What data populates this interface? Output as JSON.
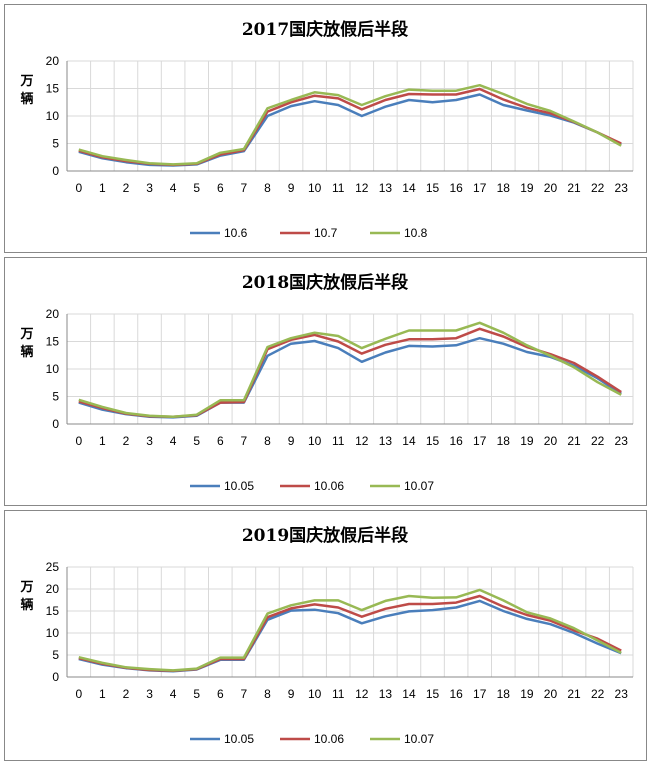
{
  "chart_data": [
    {
      "type": "line",
      "title": "2017国庆放假后半段",
      "ylabel": "万辆",
      "x": [
        "0",
        "1",
        "2",
        "3",
        "4",
        "5",
        "6",
        "7",
        "8",
        "9",
        "10",
        "11",
        "12",
        "13",
        "14",
        "15",
        "16",
        "17",
        "18",
        "19",
        "20",
        "21",
        "22",
        "23"
      ],
      "ylim": [
        0,
        20
      ],
      "yticks": [
        0,
        5,
        10,
        15,
        20
      ],
      "grid": true,
      "legend_position": "bottom",
      "series": [
        {
          "name": "10.6",
          "color": "#4a7ebb",
          "values": [
            3.5,
            2.3,
            1.6,
            1.1,
            1.0,
            1.2,
            2.8,
            3.6,
            10.0,
            11.8,
            12.7,
            12.0,
            10.0,
            11.7,
            12.9,
            12.5,
            12.9,
            13.9,
            12.0,
            11.0,
            10.1,
            8.8,
            7.0,
            4.8
          ]
        },
        {
          "name": "10.7",
          "color": "#be4b48",
          "values": [
            3.7,
            2.5,
            1.8,
            1.3,
            1.1,
            1.3,
            3.0,
            3.8,
            10.8,
            12.5,
            13.7,
            13.2,
            11.2,
            12.9,
            14.0,
            13.9,
            13.9,
            14.9,
            13.0,
            11.5,
            10.5,
            8.9,
            7.0,
            5.0
          ]
        },
        {
          "name": "10.8",
          "color": "#98b954",
          "values": [
            3.9,
            2.7,
            2.0,
            1.4,
            1.2,
            1.4,
            3.3,
            4.0,
            11.4,
            12.9,
            14.3,
            13.8,
            12.0,
            13.6,
            14.8,
            14.6,
            14.6,
            15.6,
            14.0,
            12.2,
            10.9,
            9.0,
            7.0,
            4.6
          ]
        }
      ]
    },
    {
      "type": "line",
      "title": "2018国庆放假后半段",
      "ylabel": "万辆",
      "x": [
        "0",
        "1",
        "2",
        "3",
        "4",
        "5",
        "6",
        "7",
        "8",
        "9",
        "10",
        "11",
        "12",
        "13",
        "14",
        "15",
        "16",
        "17",
        "18",
        "19",
        "20",
        "21",
        "22",
        "23"
      ],
      "ylim": [
        0,
        20
      ],
      "yticks": [
        0,
        5,
        10,
        15,
        20
      ],
      "grid": true,
      "legend_position": "bottom",
      "series": [
        {
          "name": "10.05",
          "color": "#4a7ebb",
          "values": [
            3.9,
            2.6,
            1.8,
            1.3,
            1.2,
            1.5,
            3.9,
            3.9,
            12.4,
            14.6,
            15.1,
            13.8,
            11.3,
            13.0,
            14.2,
            14.1,
            14.3,
            15.6,
            14.6,
            13.1,
            12.2,
            10.6,
            8.3,
            5.5
          ]
        },
        {
          "name": "10.06",
          "color": "#be4b48",
          "values": [
            4.1,
            2.9,
            1.9,
            1.4,
            1.3,
            1.6,
            3.9,
            4.0,
            13.6,
            15.3,
            16.2,
            15.0,
            12.8,
            14.4,
            15.4,
            15.4,
            15.6,
            17.3,
            15.9,
            14.0,
            12.7,
            11.1,
            8.6,
            5.8
          ]
        },
        {
          "name": "10.07",
          "color": "#98b954",
          "values": [
            4.4,
            3.1,
            2.0,
            1.5,
            1.3,
            1.7,
            4.3,
            4.3,
            14.0,
            15.6,
            16.6,
            16.0,
            13.8,
            15.5,
            17.0,
            17.0,
            17.0,
            18.4,
            16.6,
            14.3,
            12.4,
            10.3,
            7.6,
            5.3
          ]
        }
      ]
    },
    {
      "type": "line",
      "title": "2019国庆放假后半段",
      "ylabel": "万辆",
      "x": [
        "0",
        "1",
        "2",
        "3",
        "4",
        "5",
        "6",
        "7",
        "8",
        "9",
        "10",
        "11",
        "12",
        "13",
        "14",
        "15",
        "16",
        "17",
        "18",
        "19",
        "20",
        "21",
        "22",
        "23"
      ],
      "ylim": [
        0,
        25
      ],
      "yticks": [
        0,
        5,
        10,
        15,
        20,
        25
      ],
      "grid": true,
      "legend_position": "bottom",
      "series": [
        {
          "name": "10.05",
          "color": "#4a7ebb",
          "values": [
            4.1,
            2.8,
            2.0,
            1.5,
            1.3,
            1.7,
            3.9,
            3.9,
            13.0,
            15.1,
            15.3,
            14.5,
            12.2,
            13.8,
            14.9,
            15.2,
            15.8,
            17.3,
            15.0,
            13.2,
            12.0,
            10.0,
            7.6,
            5.4
          ]
        },
        {
          "name": "10.06",
          "color": "#be4b48",
          "values": [
            4.3,
            3.0,
            2.1,
            1.6,
            1.4,
            1.8,
            4.1,
            4.1,
            13.6,
            15.6,
            16.5,
            15.8,
            13.7,
            15.5,
            16.6,
            16.6,
            16.9,
            18.4,
            16.0,
            14.1,
            12.8,
            10.6,
            8.7,
            6.0
          ]
        },
        {
          "name": "10.07",
          "color": "#98b954",
          "values": [
            4.5,
            3.2,
            2.2,
            1.8,
            1.5,
            1.9,
            4.4,
            4.4,
            14.4,
            16.3,
            17.4,
            17.4,
            15.2,
            17.3,
            18.4,
            18.0,
            18.1,
            19.8,
            17.4,
            14.7,
            13.3,
            11.1,
            8.3,
            5.5
          ]
        }
      ]
    }
  ]
}
